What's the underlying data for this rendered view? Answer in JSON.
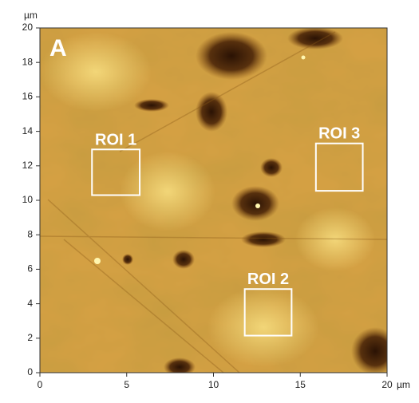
{
  "chart_data": {
    "type": "image",
    "panel_label": "A",
    "x_unit": "µm",
    "y_unit": "µm",
    "xlim": [
      0,
      20
    ],
    "ylim": [
      0,
      20
    ],
    "xticks": [
      0,
      5,
      10,
      15,
      20
    ],
    "yticks": [
      0,
      2,
      4,
      6,
      8,
      10,
      12,
      14,
      16,
      18,
      20
    ],
    "rois": [
      {
        "label": "ROI 1",
        "x": [
          3.0,
          5.75
        ],
        "y": [
          10.3,
          12.95
        ]
      },
      {
        "label": "ROI 2",
        "x": [
          11.8,
          14.5
        ],
        "y": [
          2.15,
          4.85
        ]
      },
      {
        "label": "ROI 3",
        "x": [
          15.9,
          18.6
        ],
        "y": [
          10.55,
          13.3
        ]
      }
    ],
    "roi_color": "#ffffff"
  }
}
